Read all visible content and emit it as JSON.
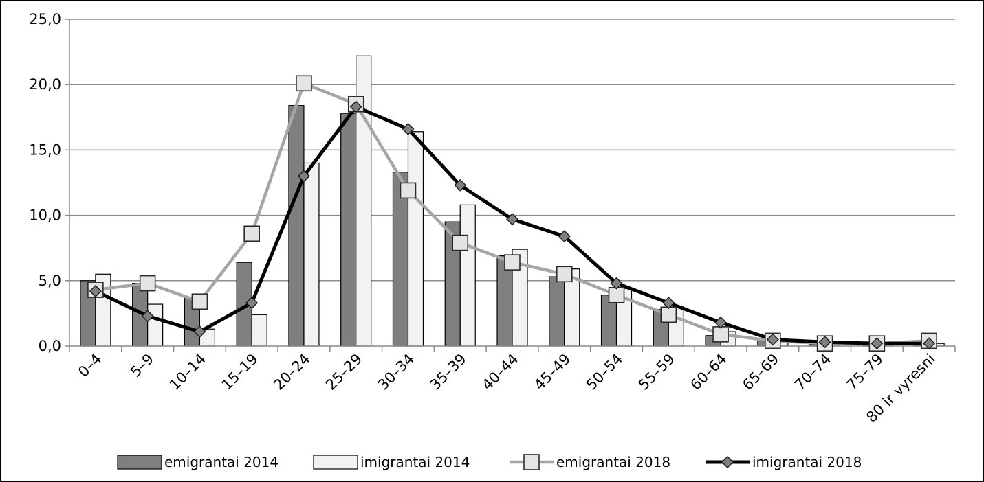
{
  "chart_data": {
    "type": "bar",
    "categories": [
      "0–4",
      "5–9",
      "10–14",
      "15–19",
      "20–24",
      "25–29",
      "30–34",
      "35–39",
      "40–44",
      "45–49",
      "50–54",
      "55–59",
      "60–64",
      "65–69",
      "70–74",
      "75–79",
      "80 ir vyresni"
    ],
    "ylim": [
      0,
      25
    ],
    "yticks": [
      "0,0",
      "5,0",
      "10,0",
      "15,0",
      "20,0",
      "25,0"
    ],
    "grid": true,
    "legend_position": "bottom",
    "series": [
      {
        "name": "emigrantai 2014",
        "kind": "bar",
        "color": "#7f7f7f",
        "values": [
          5.0,
          4.8,
          3.7,
          6.4,
          18.4,
          17.8,
          13.3,
          9.5,
          6.9,
          5.3,
          3.9,
          2.8,
          0.8,
          0.4,
          0.1,
          0.1,
          0.1
        ]
      },
      {
        "name": "imigrantai 2014",
        "kind": "bar",
        "color": "#f2f2f2",
        "values": [
          5.5,
          3.2,
          1.3,
          2.4,
          14.0,
          22.2,
          16.4,
          10.8,
          7.4,
          5.9,
          4.4,
          3.0,
          1.1,
          0.4,
          0.3,
          0.3,
          0.2
        ]
      },
      {
        "name": "emigrantai 2018",
        "kind": "line",
        "color": "#a6a6a6",
        "marker": "square",
        "values": [
          4.3,
          4.8,
          3.4,
          8.6,
          20.1,
          18.5,
          11.9,
          7.9,
          6.4,
          5.5,
          3.9,
          2.4,
          0.9,
          0.4,
          0.2,
          0.2,
          0.4
        ]
      },
      {
        "name": "imigrantai 2018",
        "kind": "line",
        "color": "#000000",
        "marker": "diamond",
        "values": [
          4.2,
          2.3,
          1.1,
          3.3,
          13.0,
          18.3,
          16.6,
          12.3,
          9.7,
          8.4,
          4.8,
          3.3,
          1.8,
          0.5,
          0.3,
          0.2,
          0.2
        ]
      }
    ]
  }
}
